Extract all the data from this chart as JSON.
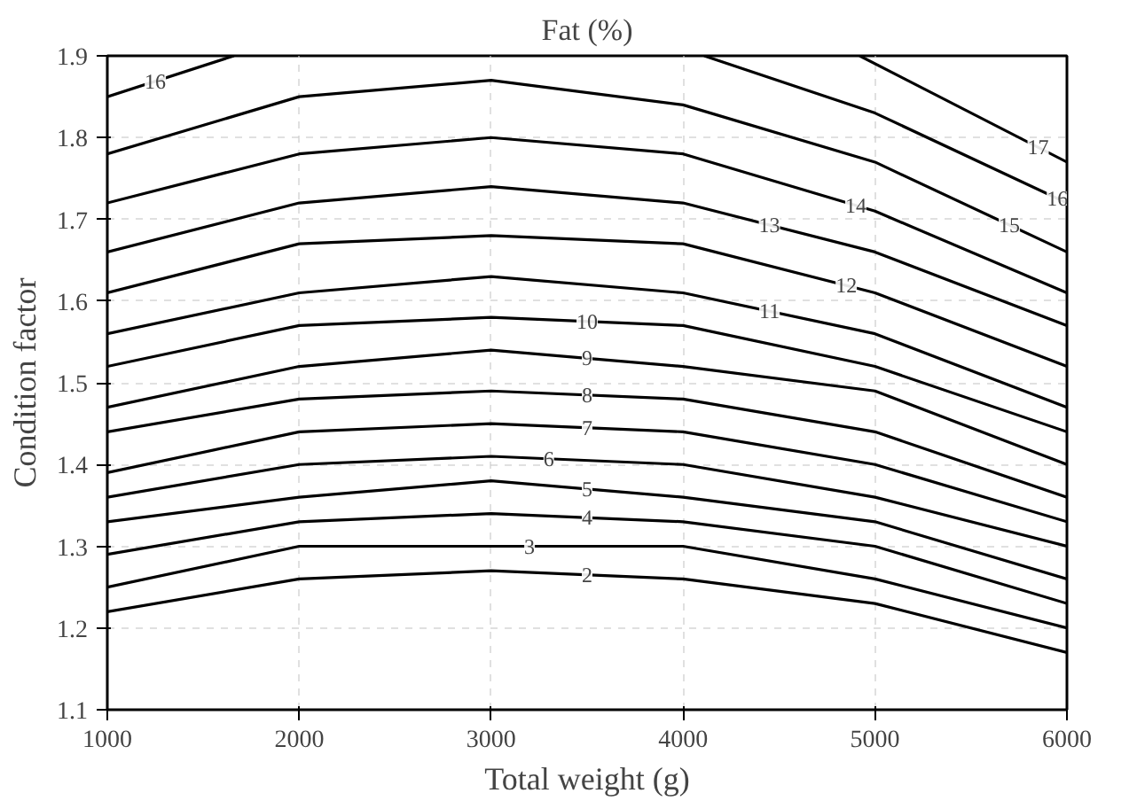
{
  "chart_data": {
    "type": "line",
    "title": "Fat (%)",
    "xlabel": "Total weight (g)",
    "ylabel": "Condition factor",
    "x": [
      1000,
      2000,
      3000,
      4000,
      5000,
      6000
    ],
    "xlim": [
      1000,
      6000
    ],
    "xticks": [
      1000,
      2000,
      3000,
      4000,
      5000,
      6000
    ],
    "ylim": [
      1.1,
      1.9
    ],
    "yticks": [
      1.1,
      1.2,
      1.3,
      1.4,
      1.5,
      1.6,
      1.7,
      1.8,
      1.9
    ],
    "grid": true,
    "marker": "none",
    "line_style": "solid",
    "series": [
      {
        "name": "2",
        "color": "#000000",
        "values": [
          1.22,
          1.26,
          1.27,
          1.26,
          1.23,
          1.17
        ]
      },
      {
        "name": "3",
        "color": "#000000",
        "values": [
          1.25,
          1.3,
          1.3,
          1.3,
          1.26,
          1.2
        ]
      },
      {
        "name": "4",
        "color": "#000000",
        "values": [
          1.29,
          1.33,
          1.34,
          1.33,
          1.3,
          1.23
        ]
      },
      {
        "name": "5",
        "color": "#000000",
        "values": [
          1.33,
          1.36,
          1.38,
          1.36,
          1.33,
          1.26
        ]
      },
      {
        "name": "6",
        "color": "#000000",
        "values": [
          1.36,
          1.4,
          1.41,
          1.4,
          1.36,
          1.3
        ]
      },
      {
        "name": "7",
        "color": "#000000",
        "values": [
          1.39,
          1.44,
          1.45,
          1.44,
          1.4,
          1.33
        ]
      },
      {
        "name": "8",
        "color": "#000000",
        "values": [
          1.44,
          1.48,
          1.49,
          1.48,
          1.44,
          1.36
        ]
      },
      {
        "name": "9",
        "color": "#000000",
        "values": [
          1.47,
          1.52,
          1.54,
          1.52,
          1.49,
          1.4
        ]
      },
      {
        "name": "10",
        "color": "#000000",
        "values": [
          1.52,
          1.57,
          1.58,
          1.57,
          1.52,
          1.44
        ]
      },
      {
        "name": "11",
        "color": "#000000",
        "values": [
          1.56,
          1.61,
          1.63,
          1.61,
          1.56,
          1.47
        ]
      },
      {
        "name": "12",
        "color": "#000000",
        "values": [
          1.61,
          1.67,
          1.68,
          1.67,
          1.61,
          1.52
        ]
      },
      {
        "name": "13",
        "color": "#000000",
        "values": [
          1.66,
          1.72,
          1.74,
          1.72,
          1.66,
          1.57
        ]
      },
      {
        "name": "14",
        "color": "#000000",
        "values": [
          1.72,
          1.78,
          1.8,
          1.78,
          1.71,
          1.61
        ]
      },
      {
        "name": "15",
        "color": "#000000",
        "values": [
          1.78,
          1.85,
          1.87,
          1.84,
          1.77,
          1.66
        ]
      },
      {
        "name": "16",
        "color": "#000000",
        "x": [
          1000,
          1660,
          3000,
          4110,
          5000,
          6000
        ],
        "values": [
          1.85,
          1.9,
          null,
          1.9,
          1.83,
          1.72
        ]
      },
      {
        "name": "17",
        "color": "#000000",
        "x": [
          4920,
          6000
        ],
        "values": [
          1.9,
          1.77
        ]
      }
    ]
  }
}
